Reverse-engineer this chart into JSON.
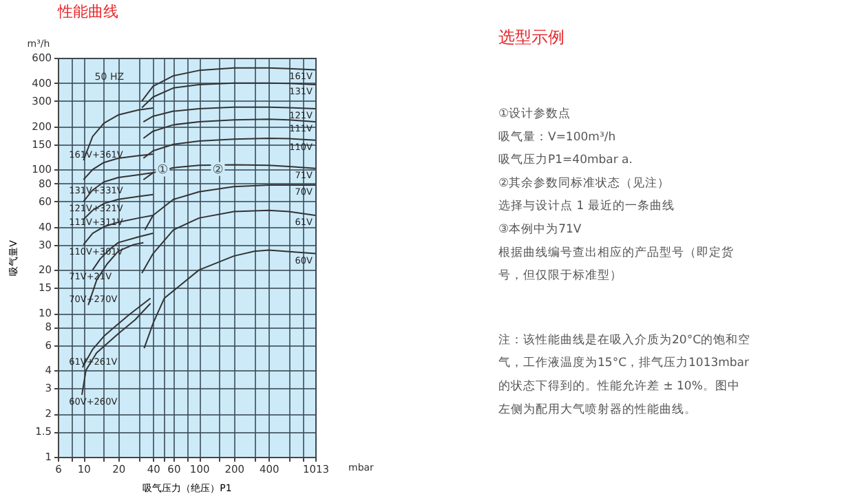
{
  "chart_data": [
    {
      "type": "line",
      "title": "性能曲线",
      "xlabel": "吸气压力（绝压）P1",
      "ylabel": "吸气量V",
      "log": "xy",
      "grid": true,
      "marker": "none",
      "line_style": "solid",
      "xlim": [
        6,
        1013
      ],
      "ylim": [
        1,
        600
      ],
      "xticks": [
        6,
        {
          "value": 8,
          "label": null
        },
        10,
        {
          "value": 15,
          "label": null
        },
        20,
        {
          "value": 30,
          "label": null
        },
        40,
        {
          "value": 50,
          "label": null
        },
        60,
        {
          "value": 80,
          "label": null
        },
        100,
        {
          "value": 150,
          "label": null
        },
        200,
        {
          "value": 300,
          "label": null
        },
        400,
        {
          "value": 600,
          "label": null
        },
        {
          "value": 800,
          "label": null
        },
        1013
      ],
      "yticks": [
        1,
        1.5,
        2,
        3,
        4,
        6,
        8,
        10,
        15,
        20,
        30,
        40,
        60,
        80,
        100,
        150,
        200,
        300,
        400,
        600
      ],
      "annotations": [
        "50 HZ",
        "m³/h",
        "mbar",
        {
          "text": "①",
          "x": 40,
          "y": 100
        },
        {
          "text": "②",
          "x": 120,
          "y": 101
        }
      ],
      "series": [
        {
          "name": "161V",
          "color": "#333333",
          "x": [
            32,
            40,
            60,
            100,
            200,
            400,
            600,
            1013
          ],
          "values": [
            300,
            380,
            450,
            490,
            510,
            510,
            505,
            495
          ]
        },
        {
          "name": "131V",
          "color": "#333333",
          "x": [
            32,
            40,
            60,
            100,
            200,
            400,
            600,
            1013
          ],
          "values": [
            270,
            320,
            370,
            390,
            400,
            400,
            398,
            390
          ]
        },
        {
          "name": "121V",
          "color": "#333333",
          "x": [
            33,
            40,
            60,
            100,
            200,
            400,
            600,
            1013
          ],
          "values": [
            215,
            235,
            255,
            265,
            272,
            272,
            270,
            265
          ]
        },
        {
          "name": "111V",
          "color": "#333333",
          "x": [
            33,
            40,
            60,
            100,
            200,
            400,
            600,
            1013
          ],
          "values": [
            165,
            185,
            205,
            215,
            222,
            224,
            222,
            215
          ]
        },
        {
          "name": "110V",
          "color": "#333333",
          "x": [
            33,
            40,
            60,
            100,
            200,
            400,
            600,
            1013
          ],
          "values": [
            120,
            135,
            150,
            158,
            163,
            165,
            164,
            160
          ]
        },
        {
          "name": "71V",
          "color": "#333333",
          "x": [
            33,
            40,
            60,
            100,
            200,
            400,
            600,
            1013
          ],
          "values": [
            85,
            95,
            103,
            107,
            108,
            107,
            105,
            102
          ]
        },
        {
          "name": "70V",
          "color": "#333333",
          "x": [
            34,
            40,
            60,
            100,
            200,
            400,
            600,
            1013
          ],
          "values": [
            38,
            48,
            62,
            70,
            76,
            78,
            78,
            78
          ]
        },
        {
          "name": "61V",
          "color": "#333333",
          "x": [
            32,
            40,
            60,
            100,
            200,
            400,
            600,
            1013
          ],
          "values": [
            19,
            26,
            38,
            46,
            51,
            52,
            51,
            48
          ]
        },
        {
          "name": "60V",
          "color": "#333333",
          "x": [
            33.5,
            40,
            50,
            100,
            200,
            300,
            400,
            1013
          ],
          "values": [
            5.7,
            8.5,
            12.7,
            20,
            25,
            27,
            27.5,
            26
          ]
        },
        {
          "name": "161V+361V",
          "color": "#333333",
          "x": [
            10,
            12,
            15,
            20,
            30,
            40
          ],
          "values": [
            116,
            170,
            210,
            240,
            260,
            268
          ]
        },
        {
          "name": "131V+331V",
          "color": "#333333",
          "x": [
            10,
            12,
            15,
            20,
            30,
            40
          ],
          "values": [
            85,
            100,
            112,
            120,
            125,
            128
          ]
        },
        {
          "name": "121V+321V",
          "color": "#333333",
          "x": [
            10,
            12,
            15,
            20,
            30,
            40
          ],
          "values": [
            60,
            72,
            82,
            88,
            92,
            95
          ]
        },
        {
          "name": "111V+311V",
          "color": "#333333",
          "x": [
            10,
            12,
            15,
            20,
            30,
            40
          ],
          "values": [
            45,
            52,
            58,
            62,
            65,
            67
          ]
        },
        {
          "name": "110V+301V",
          "color": "#333333",
          "x": [
            10,
            12,
            15,
            20,
            30,
            40
          ],
          "values": [
            30,
            36,
            40,
            43,
            46,
            48
          ]
        },
        {
          "name": "71V+21V",
          "color": "#333333",
          "x": [
            12,
            14,
            17,
            20,
            30,
            40
          ],
          "values": [
            20,
            24,
            28,
            31,
            34,
            36
          ]
        },
        {
          "name": "70V+270V",
          "color": "#333333",
          "x": [
            11,
            13,
            16,
            20,
            27,
            33
          ],
          "values": [
            11.4,
            17,
            22,
            27,
            30,
            31
          ]
        },
        {
          "name": "61V+261V",
          "color": "#333333",
          "x": [
            9.8,
            12,
            15,
            18.5,
            25,
            38
          ],
          "values": [
            4.2,
            5.6,
            6.9,
            8,
            9.8,
            12.7
          ]
        },
        {
          "name": "60V+260V",
          "color": "#333333",
          "x": [
            9.7,
            10.5,
            13,
            20,
            28,
            38
          ],
          "values": [
            2.7,
            4,
            5.3,
            7.2,
            9,
            11.7
          ]
        }
      ]
    },
    {
      "type": "other",
      "title": "选型示例",
      "annotations": [
        "①设计参数点",
        "吸气量：V=100m³/h",
        "吸气压力P1=40mbar a.",
        "②其余参数同标准状态（见注）",
        "选择与设计点 1 最近的一条曲线",
        "③本例中为71V",
        "根据曲线编号查出相应的产品型号（即定货",
        "号，但仅限于标准型）",
        "注：该性能曲线是在吸入介质为20°C的饱和空",
        "气，工作液温度为15°C，排气压力1013mbar",
        "的状态下得到的。性能允许差 ± 10%。图中",
        "左侧为配用大气喷射器的性能曲线。"
      ]
    }
  ]
}
